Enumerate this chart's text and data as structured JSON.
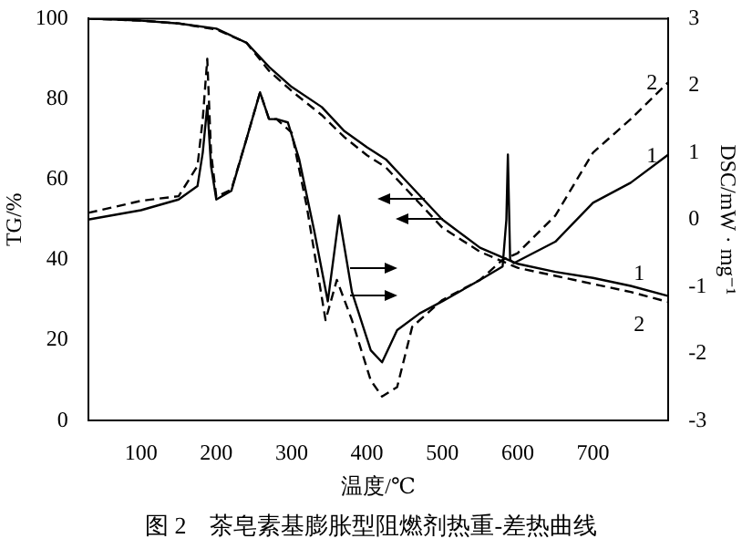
{
  "chart_data": {
    "type": "line",
    "title": "图 2　茶皂素基膨胀型阻燃剂热重-差热曲线",
    "xlabel": "温度/℃",
    "ylabel": "TG/%",
    "y2label": "DSC/mW · mg⁻¹",
    "xlim": [
      30,
      800
    ],
    "xticks": [
      100,
      200,
      300,
      400,
      500,
      600,
      700
    ],
    "ylim": [
      0,
      100
    ],
    "yticks": [
      0,
      20,
      40,
      60,
      80,
      100
    ],
    "y2lim": [
      -3,
      3
    ],
    "y2ticks": [
      -3,
      -2,
      -1,
      0,
      1,
      2,
      3
    ],
    "grid": false,
    "legend": false,
    "marker": "none",
    "series": [
      {
        "name": "1",
        "color": "#000000",
        "line_style": "solid",
        "x": [
          30,
          100,
          150,
          200,
          240,
          270,
          300,
          340,
          370,
          400,
          425,
          450,
          500,
          550,
          600,
          650,
          700,
          750,
          800
        ],
        "values": [
          100,
          99.5,
          98.8,
          97.5,
          94,
          88,
          83,
          78,
          72,
          68,
          65,
          60,
          50,
          43,
          39,
          37,
          35.5,
          33.5,
          31
        ]
      },
      {
        "name": "2",
        "color": "#000000",
        "line_style": "dashed",
        "x": [
          30,
          100,
          150,
          200,
          240,
          270,
          300,
          340,
          370,
          400,
          425,
          450,
          500,
          550,
          600,
          650,
          700,
          750,
          800
        ],
        "values": [
          100,
          99.5,
          98.8,
          97.3,
          94,
          87,
          82,
          76,
          70.5,
          66,
          63,
          58,
          48,
          42,
          38,
          36,
          34,
          32,
          29.5
        ]
      },
      {
        "name": "1",
        "color": "#000000",
        "line_style": "solid",
        "axis": "y2",
        "x": [
          30,
          100,
          150,
          175,
          182,
          188,
          193,
          200,
          220,
          240,
          258,
          270,
          280,
          295,
          310,
          330,
          348,
          363,
          380,
          405,
          420,
          440,
          470,
          500,
          550,
          580,
          585,
          587,
          590,
          595,
          650,
          700,
          750,
          800
        ],
        "values": [
          0,
          0.14,
          0.3,
          0.5,
          1.0,
          1.7,
          0.8,
          0.3,
          0.43,
          1.2,
          1.9,
          1.5,
          1.5,
          1.45,
          0.9,
          -0.17,
          -1.22,
          0.06,
          -1.08,
          -1.95,
          -2.13,
          -1.65,
          -1.4,
          -1.22,
          -0.9,
          -0.7,
          0,
          0.97,
          -0.6,
          -0.65,
          -0.33,
          0.25,
          0.55,
          0.97
        ]
      },
      {
        "name": "2",
        "color": "#000000",
        "line_style": "dashed",
        "axis": "y2",
        "x": [
          30,
          100,
          150,
          175,
          182,
          188,
          193,
          200,
          220,
          240,
          258,
          270,
          280,
          300,
          320,
          345,
          360,
          380,
          405,
          420,
          440,
          460,
          500,
          550,
          580,
          590,
          600,
          650,
          700,
          750,
          800
        ],
        "values": [
          0.1,
          0.28,
          0.35,
          0.8,
          1.5,
          2.4,
          1.0,
          0.34,
          0.45,
          1.2,
          1.9,
          1.5,
          1.5,
          1.3,
          0.2,
          -1.5,
          -0.9,
          -1.5,
          -2.4,
          -2.64,
          -2.5,
          -1.6,
          -1.2,
          -0.9,
          -0.6,
          -0.55,
          -0.5,
          0.06,
          1.0,
          1.5,
          2.05
        ]
      }
    ]
  }
}
